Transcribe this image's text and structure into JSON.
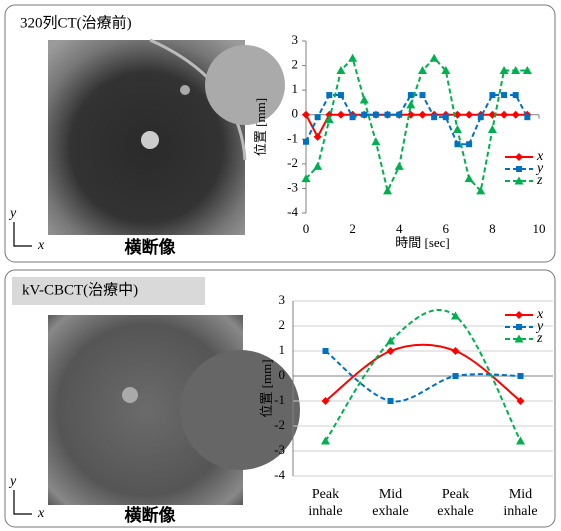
{
  "panels": [
    {
      "header": "320列CT(治療前)",
      "image_label": "横断像",
      "axis_y": "y",
      "axis_x": "x"
    },
    {
      "header": "kV-CBCT(治療中)",
      "image_label": "横断像",
      "axis_y": "y",
      "axis_x": "x"
    }
  ],
  "chart_data": [
    {
      "type": "line",
      "y_label": "位置 [mm]",
      "x_label": "時間 [sec]",
      "x": [
        0,
        0.5,
        1,
        1.5,
        2,
        2.5,
        3,
        3.5,
        4,
        4.5,
        5,
        5.5,
        6,
        6.5,
        7,
        7.5,
        8,
        8.5,
        9,
        9.5
      ],
      "xlim": [
        0,
        10
      ],
      "xticks": [
        0,
        2,
        4,
        6,
        8,
        10
      ],
      "ylim": [
        -4,
        3
      ],
      "yticks": [
        -4,
        -3,
        -2,
        -1,
        0,
        1,
        2,
        3
      ],
      "grid": false,
      "smooth": false,
      "legend": "right",
      "series": [
        {
          "name": "x",
          "color": "#ff0000",
          "marker": "diamond",
          "dashed": false,
          "values": [
            0,
            -0.9,
            0,
            0,
            0,
            0,
            0,
            0,
            0,
            0,
            0,
            0,
            0,
            0,
            0,
            0,
            0,
            0,
            0,
            0
          ]
        },
        {
          "name": "y",
          "color": "#0070c0",
          "marker": "square",
          "dashed": true,
          "values": [
            -1.1,
            -0.1,
            0.8,
            0.8,
            -0.1,
            0,
            0,
            0,
            0,
            0.8,
            0.8,
            -0.1,
            -0.1,
            -1.2,
            -1.2,
            -0.1,
            0.8,
            0.8,
            0.8,
            -0.1
          ]
        },
        {
          "name": "z",
          "color": "#00b050",
          "marker": "triangle",
          "dashed": true,
          "values": [
            -2.6,
            -2.1,
            -0.2,
            1.8,
            2.3,
            0.6,
            -1.1,
            -3.1,
            -2.1,
            0.4,
            1.8,
            2.3,
            1.8,
            -0.6,
            -2.6,
            -3.1,
            -0.6,
            1.8,
            1.8,
            1.8
          ]
        }
      ]
    },
    {
      "type": "line",
      "y_label": "位置 [mm]",
      "categories": [
        "Peak inhale",
        "Mid exhale",
        "Peak exhale",
        "Mid inhale"
      ],
      "ylim": [
        -4,
        3
      ],
      "yticks": [
        -4,
        -3,
        -2,
        -1,
        0,
        1,
        2,
        3
      ],
      "grid": true,
      "smooth": true,
      "legend": "top-right",
      "series": [
        {
          "name": "x",
          "color": "#ff0000",
          "marker": "diamond",
          "dashed": false,
          "values": [
            -1,
            1,
            1,
            -1
          ]
        },
        {
          "name": "y",
          "color": "#0070c0",
          "marker": "square",
          "dashed": true,
          "values": [
            1,
            -1,
            0,
            0
          ]
        },
        {
          "name": "z",
          "color": "#00b050",
          "marker": "triangle",
          "dashed": true,
          "values": [
            -2.6,
            1.4,
            2.4,
            -2.6
          ]
        }
      ]
    }
  ]
}
